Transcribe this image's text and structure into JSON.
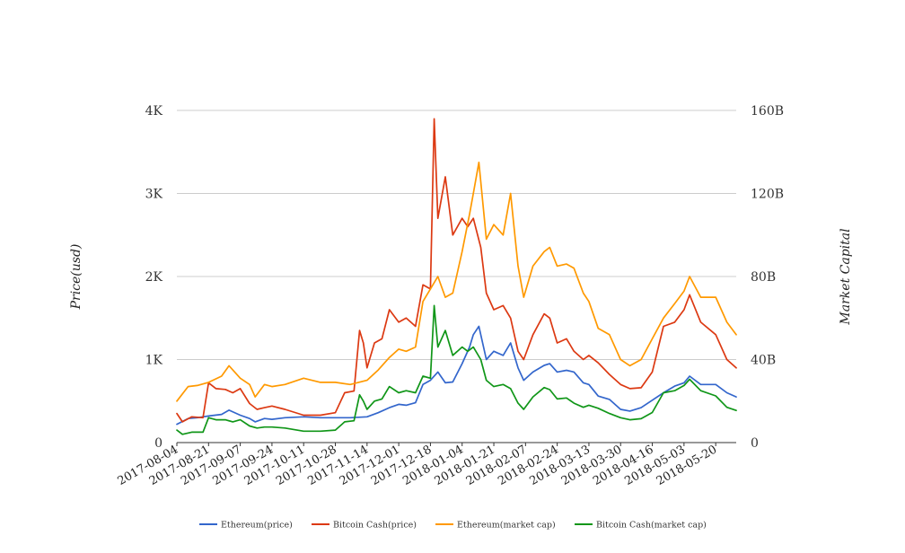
{
  "chart_data": {
    "type": "line",
    "ylabel_left": "Price(usd)",
    "ylabel_right": "Market Capital",
    "y_left_range": [
      0,
      4000
    ],
    "y_right_range": [
      0,
      160000000000
    ],
    "y_left_ticks": [
      {
        "value": 0,
        "label": "0"
      },
      {
        "value": 1000,
        "label": "1K"
      },
      {
        "value": 2000,
        "label": "2K"
      },
      {
        "value": 3000,
        "label": "3K"
      },
      {
        "value": 4000,
        "label": "4K"
      }
    ],
    "y_right_ticks": [
      {
        "value": 0,
        "label": "0"
      },
      {
        "value": 40000000000,
        "label": "40B"
      },
      {
        "value": 80000000000,
        "label": "80B"
      },
      {
        "value": 120000000000,
        "label": "120B"
      },
      {
        "value": 160000000000,
        "label": "160B"
      }
    ],
    "x_range": [
      "2017-08-04",
      "2018-05-31"
    ],
    "x_ticks": [
      "2017-08-04",
      "2017-08-21",
      "2017-09-07",
      "2017-09-24",
      "2017-10-11",
      "2017-10-28",
      "2017-11-14",
      "2017-12-01",
      "2017-12-18",
      "2018-01-04",
      "2018-01-21",
      "2018-02-07",
      "2018-02-24",
      "2018-03-13",
      "2018-03-30",
      "2018-04-16",
      "2018-05-03",
      "2018-05-20"
    ],
    "grid": true,
    "legend_position": "bottom",
    "colors": {
      "ethereum_price": "#3366cc",
      "bch_price": "#dc3912",
      "ethereum_mcap": "#ff9900",
      "bch_mcap": "#109618",
      "grid": "#cccccc"
    },
    "series": [
      {
        "name": "Ethereum(price)",
        "axis": "left",
        "color": "#3366cc",
        "points": [
          [
            "2017-08-04",
            220
          ],
          [
            "2017-08-10",
            290
          ],
          [
            "2017-08-15",
            300
          ],
          [
            "2017-08-21",
            320
          ],
          [
            "2017-08-28",
            340
          ],
          [
            "2017-09-01",
            390
          ],
          [
            "2017-09-07",
            330
          ],
          [
            "2017-09-12",
            290
          ],
          [
            "2017-09-15",
            250
          ],
          [
            "2017-09-20",
            290
          ],
          [
            "2017-09-24",
            280
          ],
          [
            "2017-10-01",
            300
          ],
          [
            "2017-10-11",
            310
          ],
          [
            "2017-10-20",
            300
          ],
          [
            "2017-10-28",
            300
          ],
          [
            "2017-11-05",
            300
          ],
          [
            "2017-11-14",
            310
          ],
          [
            "2017-11-20",
            360
          ],
          [
            "2017-11-26",
            420
          ],
          [
            "2017-12-01",
            460
          ],
          [
            "2017-12-05",
            450
          ],
          [
            "2017-12-10",
            480
          ],
          [
            "2017-12-14",
            700
          ],
          [
            "2017-12-18",
            750
          ],
          [
            "2017-12-22",
            850
          ],
          [
            "2017-12-26",
            720
          ],
          [
            "2017-12-30",
            730
          ],
          [
            "2018-01-04",
            950
          ],
          [
            "2018-01-08",
            1150
          ],
          [
            "2018-01-10",
            1300
          ],
          [
            "2018-01-13",
            1400
          ],
          [
            "2018-01-17",
            1000
          ],
          [
            "2018-01-21",
            1100
          ],
          [
            "2018-01-26",
            1050
          ],
          [
            "2018-01-30",
            1200
          ],
          [
            "2018-02-03",
            900
          ],
          [
            "2018-02-06",
            750
          ],
          [
            "2018-02-11",
            850
          ],
          [
            "2018-02-17",
            930
          ],
          [
            "2018-02-20",
            950
          ],
          [
            "2018-02-24",
            850
          ],
          [
            "2018-03-01",
            870
          ],
          [
            "2018-03-05",
            850
          ],
          [
            "2018-03-10",
            720
          ],
          [
            "2018-03-13",
            700
          ],
          [
            "2018-03-18",
            560
          ],
          [
            "2018-03-24",
            520
          ],
          [
            "2018-03-30",
            400
          ],
          [
            "2018-04-04",
            380
          ],
          [
            "2018-04-10",
            420
          ],
          [
            "2018-04-16",
            510
          ],
          [
            "2018-04-22",
            600
          ],
          [
            "2018-04-28",
            680
          ],
          [
            "2018-05-03",
            720
          ],
          [
            "2018-05-06",
            800
          ],
          [
            "2018-05-12",
            700
          ],
          [
            "2018-05-20",
            700
          ],
          [
            "2018-05-26",
            600
          ],
          [
            "2018-05-31",
            550
          ]
        ]
      },
      {
        "name": "Bitcoin Cash(price)",
        "axis": "left",
        "color": "#dc3912",
        "points": [
          [
            "2017-08-04",
            350
          ],
          [
            "2017-08-07",
            250
          ],
          [
            "2017-08-12",
            310
          ],
          [
            "2017-08-18",
            300
          ],
          [
            "2017-08-21",
            720
          ],
          [
            "2017-08-25",
            650
          ],
          [
            "2017-08-30",
            640
          ],
          [
            "2017-09-03",
            600
          ],
          [
            "2017-09-07",
            650
          ],
          [
            "2017-09-12",
            470
          ],
          [
            "2017-09-16",
            400
          ],
          [
            "2017-09-20",
            420
          ],
          [
            "2017-09-24",
            440
          ],
          [
            "2017-10-01",
            400
          ],
          [
            "2017-10-11",
            330
          ],
          [
            "2017-10-20",
            330
          ],
          [
            "2017-10-28",
            360
          ],
          [
            "2017-11-02",
            600
          ],
          [
            "2017-11-07",
            620
          ],
          [
            "2017-11-10",
            1350
          ],
          [
            "2017-11-12",
            1200
          ],
          [
            "2017-11-14",
            900
          ],
          [
            "2017-11-18",
            1200
          ],
          [
            "2017-11-22",
            1250
          ],
          [
            "2017-11-26",
            1600
          ],
          [
            "2017-12-01",
            1450
          ],
          [
            "2017-12-05",
            1500
          ],
          [
            "2017-12-10",
            1400
          ],
          [
            "2017-12-14",
            1900
          ],
          [
            "2017-12-18",
            1850
          ],
          [
            "2017-12-20",
            3900
          ],
          [
            "2017-12-22",
            2700
          ],
          [
            "2017-12-26",
            3200
          ],
          [
            "2017-12-30",
            2500
          ],
          [
            "2018-01-04",
            2700
          ],
          [
            "2018-01-07",
            2600
          ],
          [
            "2018-01-10",
            2700
          ],
          [
            "2018-01-14",
            2350
          ],
          [
            "2018-01-17",
            1800
          ],
          [
            "2018-01-21",
            1600
          ],
          [
            "2018-01-26",
            1650
          ],
          [
            "2018-01-30",
            1500
          ],
          [
            "2018-02-03",
            1100
          ],
          [
            "2018-02-06",
            1000
          ],
          [
            "2018-02-11",
            1300
          ],
          [
            "2018-02-17",
            1550
          ],
          [
            "2018-02-20",
            1500
          ],
          [
            "2018-02-24",
            1200
          ],
          [
            "2018-03-01",
            1250
          ],
          [
            "2018-03-05",
            1100
          ],
          [
            "2018-03-10",
            1000
          ],
          [
            "2018-03-13",
            1050
          ],
          [
            "2018-03-18",
            960
          ],
          [
            "2018-03-24",
            820
          ],
          [
            "2018-03-30",
            700
          ],
          [
            "2018-04-04",
            650
          ],
          [
            "2018-04-10",
            660
          ],
          [
            "2018-04-16",
            850
          ],
          [
            "2018-04-22",
            1400
          ],
          [
            "2018-04-28",
            1450
          ],
          [
            "2018-05-03",
            1600
          ],
          [
            "2018-05-06",
            1780
          ],
          [
            "2018-05-12",
            1450
          ],
          [
            "2018-05-20",
            1300
          ],
          [
            "2018-05-26",
            1000
          ],
          [
            "2018-05-31",
            900
          ]
        ]
      },
      {
        "name": "Ethereum(market cap)",
        "axis": "right",
        "color": "#ff9900",
        "points": [
          [
            "2017-08-04",
            20000000000
          ],
          [
            "2017-08-10",
            27000000000
          ],
          [
            "2017-08-15",
            27500000000
          ],
          [
            "2017-08-21",
            29000000000
          ],
          [
            "2017-08-28",
            32000000000
          ],
          [
            "2017-09-01",
            37000000000
          ],
          [
            "2017-09-07",
            31000000000
          ],
          [
            "2017-09-12",
            28000000000
          ],
          [
            "2017-09-15",
            22000000000
          ],
          [
            "2017-09-20",
            28000000000
          ],
          [
            "2017-09-24",
            27000000000
          ],
          [
            "2017-10-01",
            28000000000
          ],
          [
            "2017-10-11",
            31000000000
          ],
          [
            "2017-10-20",
            29000000000
          ],
          [
            "2017-10-28",
            29000000000
          ],
          [
            "2017-11-05",
            28000000000
          ],
          [
            "2017-11-14",
            30000000000
          ],
          [
            "2017-11-20",
            35000000000
          ],
          [
            "2017-11-26",
            41000000000
          ],
          [
            "2017-12-01",
            45000000000
          ],
          [
            "2017-12-05",
            44000000000
          ],
          [
            "2017-12-10",
            46000000000
          ],
          [
            "2017-12-14",
            68000000000
          ],
          [
            "2017-12-18",
            74000000000
          ],
          [
            "2017-12-22",
            80000000000
          ],
          [
            "2017-12-26",
            70000000000
          ],
          [
            "2017-12-30",
            72000000000
          ],
          [
            "2018-01-04",
            92000000000
          ],
          [
            "2018-01-08",
            110000000000
          ],
          [
            "2018-01-10",
            120000000000
          ],
          [
            "2018-01-13",
            135000000000
          ],
          [
            "2018-01-17",
            98000000000
          ],
          [
            "2018-01-21",
            105000000000
          ],
          [
            "2018-01-26",
            100000000000
          ],
          [
            "2018-01-30",
            120000000000
          ],
          [
            "2018-02-03",
            85000000000
          ],
          [
            "2018-02-06",
            70000000000
          ],
          [
            "2018-02-11",
            85000000000
          ],
          [
            "2018-02-17",
            92000000000
          ],
          [
            "2018-02-20",
            94000000000
          ],
          [
            "2018-02-24",
            85000000000
          ],
          [
            "2018-03-01",
            86000000000
          ],
          [
            "2018-03-05",
            84000000000
          ],
          [
            "2018-03-10",
            72000000000
          ],
          [
            "2018-03-13",
            68000000000
          ],
          [
            "2018-03-18",
            55000000000
          ],
          [
            "2018-03-24",
            52000000000
          ],
          [
            "2018-03-30",
            40000000000
          ],
          [
            "2018-04-04",
            37000000000
          ],
          [
            "2018-04-10",
            40000000000
          ],
          [
            "2018-04-16",
            50000000000
          ],
          [
            "2018-04-22",
            60000000000
          ],
          [
            "2018-04-28",
            67000000000
          ],
          [
            "2018-05-03",
            73000000000
          ],
          [
            "2018-05-06",
            80000000000
          ],
          [
            "2018-05-12",
            70000000000
          ],
          [
            "2018-05-20",
            70000000000
          ],
          [
            "2018-05-26",
            58000000000
          ],
          [
            "2018-05-31",
            52000000000
          ]
        ]
      },
      {
        "name": "Bitcoin Cash(market cap)",
        "axis": "right",
        "color": "#109618",
        "points": [
          [
            "2017-08-04",
            6000000000
          ],
          [
            "2017-08-07",
            4000000000
          ],
          [
            "2017-08-12",
            5000000000
          ],
          [
            "2017-08-18",
            5000000000
          ],
          [
            "2017-08-21",
            12000000000
          ],
          [
            "2017-08-25",
            11000000000
          ],
          [
            "2017-08-30",
            11000000000
          ],
          [
            "2017-09-03",
            10000000000
          ],
          [
            "2017-09-07",
            11000000000
          ],
          [
            "2017-09-12",
            8000000000
          ],
          [
            "2017-09-16",
            7000000000
          ],
          [
            "2017-09-20",
            7500000000
          ],
          [
            "2017-09-24",
            7500000000
          ],
          [
            "2017-10-01",
            7000000000
          ],
          [
            "2017-10-11",
            5500000000
          ],
          [
            "2017-10-20",
            5500000000
          ],
          [
            "2017-10-28",
            6000000000
          ],
          [
            "2017-11-02",
            10000000000
          ],
          [
            "2017-11-07",
            10500000000
          ],
          [
            "2017-11-10",
            23000000000
          ],
          [
            "2017-11-12",
            20000000000
          ],
          [
            "2017-11-14",
            16000000000
          ],
          [
            "2017-11-18",
            20000000000
          ],
          [
            "2017-11-22",
            21000000000
          ],
          [
            "2017-11-26",
            27000000000
          ],
          [
            "2017-12-01",
            24000000000
          ],
          [
            "2017-12-05",
            25000000000
          ],
          [
            "2017-12-10",
            24000000000
          ],
          [
            "2017-12-14",
            32000000000
          ],
          [
            "2017-12-18",
            31000000000
          ],
          [
            "2017-12-20",
            66000000000
          ],
          [
            "2017-12-22",
            46000000000
          ],
          [
            "2017-12-26",
            54000000000
          ],
          [
            "2017-12-30",
            42000000000
          ],
          [
            "2018-01-04",
            46000000000
          ],
          [
            "2018-01-07",
            44000000000
          ],
          [
            "2018-01-10",
            46000000000
          ],
          [
            "2018-01-14",
            40000000000
          ],
          [
            "2018-01-17",
            30000000000
          ],
          [
            "2018-01-21",
            27000000000
          ],
          [
            "2018-01-26",
            28000000000
          ],
          [
            "2018-01-30",
            26000000000
          ],
          [
            "2018-02-03",
            19000000000
          ],
          [
            "2018-02-06",
            16000000000
          ],
          [
            "2018-02-11",
            22000000000
          ],
          [
            "2018-02-17",
            26500000000
          ],
          [
            "2018-02-20",
            25500000000
          ],
          [
            "2018-02-24",
            21000000000
          ],
          [
            "2018-03-01",
            21500000000
          ],
          [
            "2018-03-05",
            19000000000
          ],
          [
            "2018-03-10",
            17000000000
          ],
          [
            "2018-03-13",
            18000000000
          ],
          [
            "2018-03-18",
            16500000000
          ],
          [
            "2018-03-24",
            14000000000
          ],
          [
            "2018-03-30",
            12000000000
          ],
          [
            "2018-04-04",
            11000000000
          ],
          [
            "2018-04-10",
            11500000000
          ],
          [
            "2018-04-16",
            14500000000
          ],
          [
            "2018-04-22",
            24000000000
          ],
          [
            "2018-04-28",
            25000000000
          ],
          [
            "2018-05-03",
            27500000000
          ],
          [
            "2018-05-06",
            30500000000
          ],
          [
            "2018-05-12",
            25000000000
          ],
          [
            "2018-05-20",
            22500000000
          ],
          [
            "2018-05-26",
            17000000000
          ],
          [
            "2018-05-31",
            15500000000
          ]
        ]
      }
    ]
  }
}
